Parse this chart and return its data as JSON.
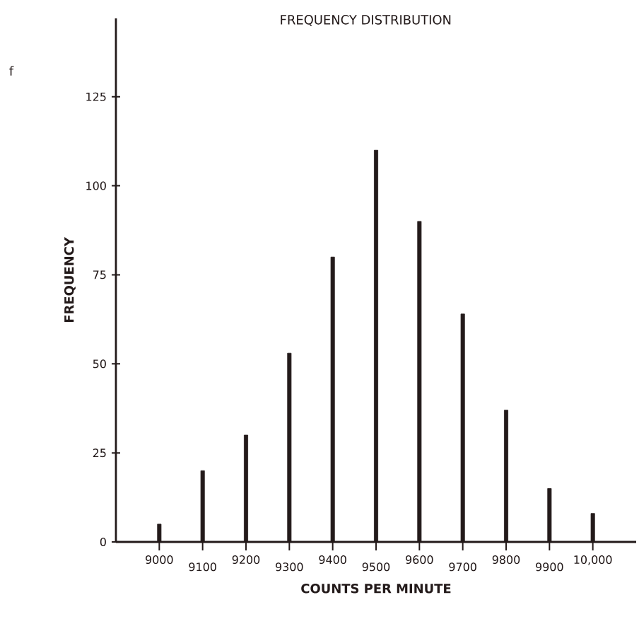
{
  "chart_data": {
    "type": "bar",
    "title": "FREQUENCY DISTRIBUTION",
    "xlabel": "COUNTS PER MINUTE",
    "ylabel": "FREQUENCY",
    "annotations": [
      "f"
    ],
    "categories": [
      "9000",
      "9100",
      "9200",
      "9300",
      "9400",
      "9500",
      "9600",
      "9700",
      "9800",
      "9900",
      "10,000"
    ],
    "values": [
      5,
      20,
      30,
      53,
      80,
      110,
      90,
      64,
      37,
      15,
      8
    ],
    "color": "#231a1a",
    "ylim": [
      0,
      147
    ],
    "yticks": [
      0,
      25,
      50,
      75,
      100,
      125
    ]
  }
}
